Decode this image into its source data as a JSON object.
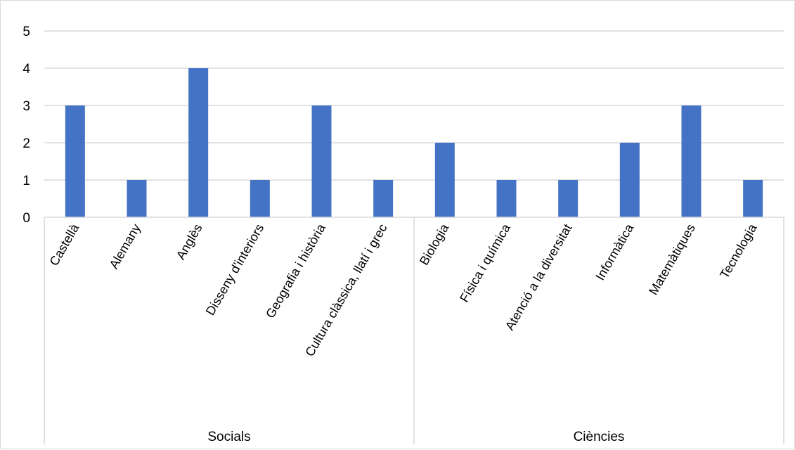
{
  "chart_data": {
    "type": "bar",
    "title": "",
    "xlabel": "",
    "ylabel": "",
    "ylim": [
      0,
      5
    ],
    "yticks": [
      0,
      1,
      2,
      3,
      4,
      5
    ],
    "grid": true,
    "legend": "none",
    "bar_color": "#4472c4",
    "gridline_color": "#d9d9d9",
    "groups": [
      {
        "name": "Socials",
        "categories": [
          "Castellà",
          "Alemany",
          "Anglès",
          "Disseny d'interiors",
          "Geografia i història",
          "Cultura clàssica, llatí i grec"
        ],
        "values": [
          3,
          1,
          4,
          1,
          3,
          1
        ]
      },
      {
        "name": "Ciències",
        "categories": [
          "Biologia",
          "Física i química",
          "Atenció a la diversitat",
          "Informàtica",
          "Matemàtiques",
          "Tecnologia"
        ],
        "values": [
          2,
          1,
          1,
          2,
          3,
          1
        ]
      }
    ]
  }
}
